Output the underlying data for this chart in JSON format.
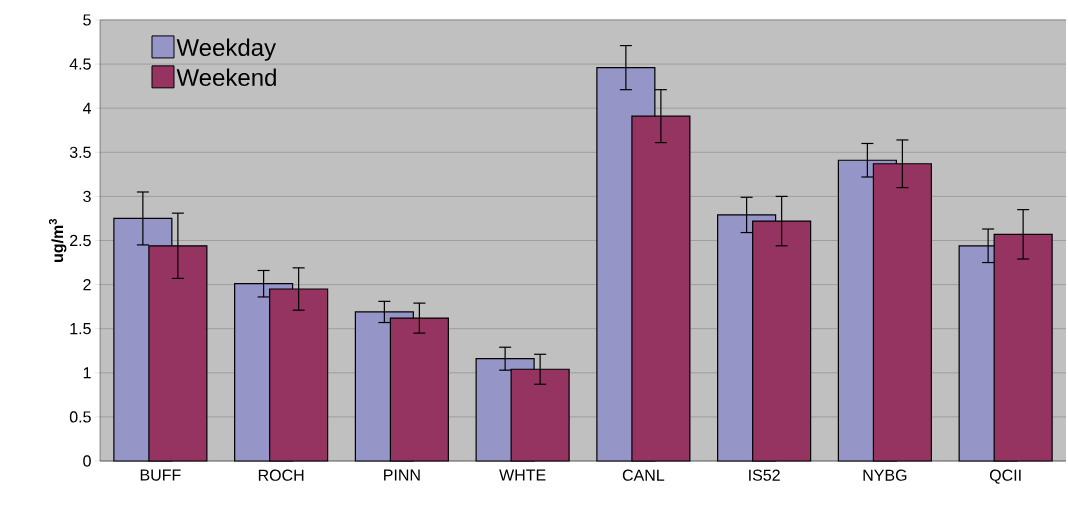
{
  "chart_data": {
    "type": "bar",
    "ylabel": "ug/m$^{3}$",
    "categories": [
      "BUFF",
      "ROCH",
      "PINN",
      "WHTE",
      "CANL",
      "IS52",
      "NYBG",
      "QCII"
    ],
    "series": [
      {
        "name": "Weekday",
        "color": "#9595c8",
        "values": [
          2.75,
          2.01,
          1.69,
          1.16,
          4.46,
          2.79,
          3.41,
          2.44
        ],
        "errors": [
          0.3,
          0.15,
          0.12,
          0.13,
          0.25,
          0.2,
          0.19,
          0.19
        ]
      },
      {
        "name": "Weekend",
        "color": "#953461",
        "values": [
          2.44,
          1.95,
          1.62,
          1.04,
          3.91,
          2.72,
          3.37,
          2.57
        ],
        "errors": [
          0.37,
          0.24,
          0.17,
          0.17,
          0.3,
          0.28,
          0.27,
          0.28
        ]
      }
    ],
    "ylim": [
      0,
      5
    ],
    "yticks": [
      0,
      0.5,
      1,
      1.5,
      2,
      2.5,
      3,
      3.5,
      4,
      4.5,
      5
    ],
    "grid": "y",
    "legend": "top left"
  }
}
